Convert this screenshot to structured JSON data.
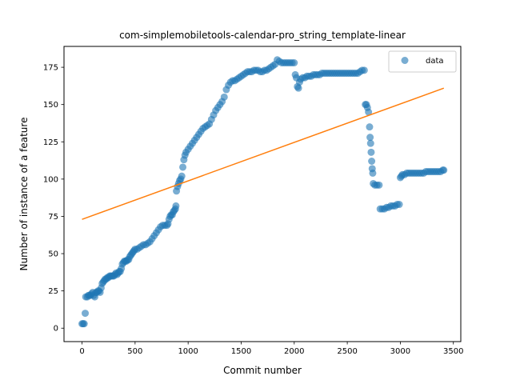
{
  "chart_data": {
    "type": "scatter",
    "title": "com-simplemobiletools-calendar-pro_string_template-linear",
    "xlabel": "Commit number",
    "ylabel": "Number of instance of a feature",
    "xlim": [
      -170,
      3570
    ],
    "ylim": [
      -9,
      189
    ],
    "xticks": [
      0,
      500,
      1000,
      1500,
      2000,
      2500,
      3000,
      3500
    ],
    "yticks": [
      0,
      25,
      50,
      75,
      100,
      125,
      150,
      175
    ],
    "grid": false,
    "legend": {
      "placement": "top-right",
      "entries": [
        "data"
      ]
    },
    "colors": {
      "data": "#1f77b4",
      "fit": "#ff7f0e"
    },
    "series": [
      {
        "name": "data",
        "kind": "scatter",
        "points": [
          [
            0,
            3
          ],
          [
            10,
            3
          ],
          [
            20,
            3
          ],
          [
            30,
            10
          ],
          [
            35,
            21
          ],
          [
            50,
            21
          ],
          [
            60,
            22
          ],
          [
            70,
            22
          ],
          [
            80,
            22
          ],
          [
            90,
            23
          ],
          [
            100,
            24
          ],
          [
            110,
            22
          ],
          [
            120,
            21
          ],
          [
            130,
            24
          ],
          [
            140,
            24
          ],
          [
            150,
            25
          ],
          [
            160,
            25
          ],
          [
            170,
            24
          ],
          [
            180,
            27
          ],
          [
            190,
            30
          ],
          [
            200,
            31
          ],
          [
            210,
            32
          ],
          [
            220,
            33
          ],
          [
            230,
            33
          ],
          [
            240,
            34
          ],
          [
            250,
            34
          ],
          [
            260,
            35
          ],
          [
            270,
            35
          ],
          [
            280,
            35
          ],
          [
            290,
            35
          ],
          [
            300,
            35
          ],
          [
            310,
            36
          ],
          [
            320,
            37
          ],
          [
            330,
            36
          ],
          [
            340,
            37
          ],
          [
            350,
            38
          ],
          [
            360,
            38
          ],
          [
            370,
            40
          ],
          [
            380,
            43
          ],
          [
            390,
            44
          ],
          [
            400,
            45
          ],
          [
            410,
            45
          ],
          [
            420,
            45
          ],
          [
            430,
            46
          ],
          [
            440,
            46
          ],
          [
            450,
            48
          ],
          [
            460,
            49
          ],
          [
            470,
            50
          ],
          [
            480,
            51
          ],
          [
            490,
            52
          ],
          [
            500,
            53
          ],
          [
            520,
            53
          ],
          [
            540,
            54
          ],
          [
            560,
            55
          ],
          [
            580,
            56
          ],
          [
            600,
            56
          ],
          [
            620,
            57
          ],
          [
            640,
            58
          ],
          [
            660,
            60
          ],
          [
            680,
            62
          ],
          [
            700,
            64
          ],
          [
            720,
            66
          ],
          [
            740,
            68
          ],
          [
            760,
            69
          ],
          [
            780,
            69
          ],
          [
            800,
            69
          ],
          [
            810,
            70
          ],
          [
            820,
            73
          ],
          [
            830,
            75
          ],
          [
            840,
            76
          ],
          [
            850,
            76
          ],
          [
            860,
            78
          ],
          [
            870,
            79
          ],
          [
            880,
            80
          ],
          [
            885,
            82
          ],
          [
            890,
            92
          ],
          [
            900,
            95
          ],
          [
            910,
            97
          ],
          [
            920,
            99
          ],
          [
            930,
            100
          ],
          [
            940,
            102
          ],
          [
            950,
            108
          ],
          [
            960,
            113
          ],
          [
            970,
            116
          ],
          [
            980,
            118
          ],
          [
            1000,
            120
          ],
          [
            1020,
            122
          ],
          [
            1040,
            124
          ],
          [
            1060,
            126
          ],
          [
            1080,
            128
          ],
          [
            1100,
            130
          ],
          [
            1120,
            132
          ],
          [
            1140,
            134
          ],
          [
            1160,
            135
          ],
          [
            1180,
            136
          ],
          [
            1200,
            137
          ],
          [
            1220,
            140
          ],
          [
            1240,
            143
          ],
          [
            1260,
            146
          ],
          [
            1280,
            148
          ],
          [
            1300,
            150
          ],
          [
            1320,
            152
          ],
          [
            1340,
            155
          ],
          [
            1360,
            160
          ],
          [
            1380,
            163
          ],
          [
            1400,
            165
          ],
          [
            1420,
            166
          ],
          [
            1440,
            166
          ],
          [
            1460,
            167
          ],
          [
            1480,
            168
          ],
          [
            1500,
            169
          ],
          [
            1520,
            170
          ],
          [
            1540,
            171
          ],
          [
            1560,
            172
          ],
          [
            1580,
            172
          ],
          [
            1600,
            172
          ],
          [
            1620,
            173
          ],
          [
            1640,
            173
          ],
          [
            1660,
            173
          ],
          [
            1680,
            172
          ],
          [
            1700,
            172
          ],
          [
            1720,
            173
          ],
          [
            1740,
            173
          ],
          [
            1760,
            174
          ],
          [
            1780,
            175
          ],
          [
            1800,
            176
          ],
          [
            1820,
            177
          ],
          [
            1840,
            180
          ],
          [
            1860,
            179
          ],
          [
            1880,
            178
          ],
          [
            1900,
            178
          ],
          [
            1920,
            178
          ],
          [
            1940,
            178
          ],
          [
            1960,
            178
          ],
          [
            1980,
            178
          ],
          [
            2000,
            178
          ],
          [
            2010,
            170
          ],
          [
            2020,
            168
          ],
          [
            2030,
            162
          ],
          [
            2040,
            161
          ],
          [
            2050,
            165
          ],
          [
            2060,
            167
          ],
          [
            2080,
            168
          ],
          [
            2100,
            168
          ],
          [
            2120,
            169
          ],
          [
            2140,
            169
          ],
          [
            2160,
            169
          ],
          [
            2180,
            170
          ],
          [
            2200,
            170
          ],
          [
            2220,
            170
          ],
          [
            2240,
            170
          ],
          [
            2260,
            171
          ],
          [
            2280,
            171
          ],
          [
            2300,
            171
          ],
          [
            2320,
            171
          ],
          [
            2340,
            171
          ],
          [
            2360,
            171
          ],
          [
            2380,
            171
          ],
          [
            2400,
            171
          ],
          [
            2420,
            171
          ],
          [
            2440,
            171
          ],
          [
            2460,
            171
          ],
          [
            2480,
            171
          ],
          [
            2500,
            171
          ],
          [
            2520,
            171
          ],
          [
            2540,
            171
          ],
          [
            2560,
            171
          ],
          [
            2580,
            171
          ],
          [
            2600,
            171
          ],
          [
            2620,
            172
          ],
          [
            2640,
            173
          ],
          [
            2660,
            173
          ],
          [
            2670,
            150
          ],
          [
            2680,
            150
          ],
          [
            2690,
            148
          ],
          [
            2700,
            145
          ],
          [
            2710,
            135
          ],
          [
            2715,
            128
          ],
          [
            2720,
            124
          ],
          [
            2725,
            118
          ],
          [
            2730,
            112
          ],
          [
            2735,
            107
          ],
          [
            2740,
            104
          ],
          [
            2745,
            97
          ],
          [
            2760,
            96
          ],
          [
            2780,
            96
          ],
          [
            2800,
            96
          ],
          [
            2810,
            80
          ],
          [
            2830,
            80
          ],
          [
            2850,
            80
          ],
          [
            2870,
            81
          ],
          [
            2890,
            81
          ],
          [
            2910,
            82
          ],
          [
            2930,
            82
          ],
          [
            2950,
            82
          ],
          [
            2970,
            83
          ],
          [
            2990,
            83
          ],
          [
            3000,
            101
          ],
          [
            3010,
            102
          ],
          [
            3020,
            103
          ],
          [
            3040,
            103
          ],
          [
            3060,
            104
          ],
          [
            3080,
            104
          ],
          [
            3100,
            104
          ],
          [
            3120,
            104
          ],
          [
            3140,
            104
          ],
          [
            3160,
            104
          ],
          [
            3180,
            104
          ],
          [
            3200,
            104
          ],
          [
            3220,
            104
          ],
          [
            3240,
            105
          ],
          [
            3260,
            105
          ],
          [
            3280,
            105
          ],
          [
            3300,
            105
          ],
          [
            3320,
            105
          ],
          [
            3340,
            105
          ],
          [
            3360,
            105
          ],
          [
            3380,
            105
          ],
          [
            3400,
            106
          ],
          [
            3410,
            106
          ]
        ]
      },
      {
        "kind": "line",
        "points": [
          [
            0,
            73
          ],
          [
            3410,
            161
          ]
        ]
      }
    ]
  }
}
